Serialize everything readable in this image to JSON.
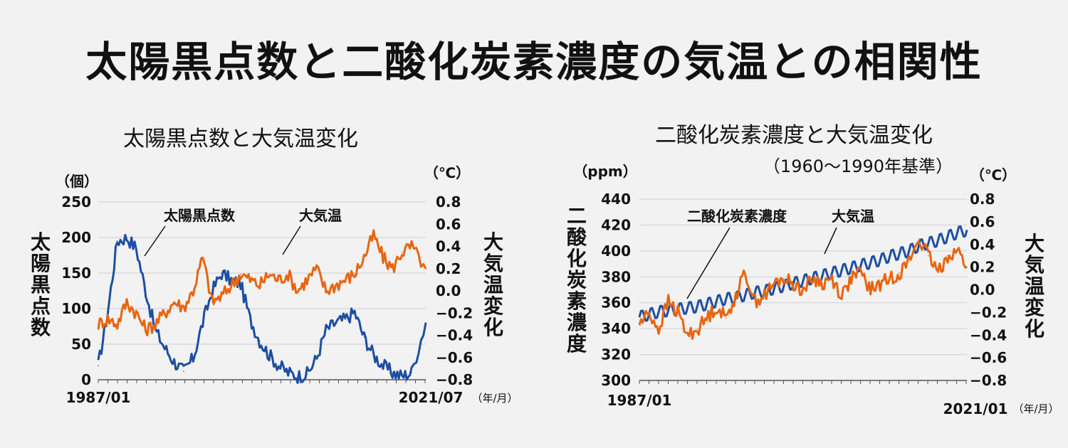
{
  "title": "太陽黒点数と二酸化炭素濃度の気温との相関性",
  "chart_data": [
    {
      "type": "line",
      "title": "太陽黒点数と大気温変化",
      "ylabel_left": "太陽黒点数",
      "ylabel_right": "大気温変化",
      "unit_left": "（個）",
      "unit_right": "（℃）",
      "x_start_label": "1987/01",
      "x_end_label": "2021/07",
      "x_unit": "（年/月）",
      "ylim_left": [
        0,
        250
      ],
      "ylim_right": [
        -0.8,
        0.8
      ],
      "yticks_left": [
        "0",
        "50",
        "100",
        "150",
        "200",
        "250"
      ],
      "yticks_right": [
        "−0.8",
        "−0.6",
        "−0.4",
        "−0.2",
        "0.0",
        "0.2",
        "0.4",
        "0.6",
        "0.8"
      ],
      "grid": true,
      "series": [
        {
          "name": "太陽黒点数",
          "axis": "left",
          "color": "#1c4ea3",
          "x": [
            1987,
            1988,
            1989,
            1990,
            1991,
            1992,
            1993,
            1994,
            1995,
            1996,
            1997,
            1998,
            1999,
            2000,
            2001,
            2002,
            2003,
            2004,
            2005,
            2006,
            2007,
            2008,
            2009,
            2010,
            2011,
            2012,
            2013,
            2014,
            2015,
            2016,
            2017,
            2018,
            2019,
            2020,
            2021.5
          ],
          "values": [
            20,
            95,
            195,
            200,
            185,
            125,
            70,
            45,
            25,
            12,
            30,
            80,
            125,
            150,
            140,
            135,
            85,
            55,
            35,
            20,
            10,
            5,
            8,
            30,
            70,
            80,
            85,
            95,
            60,
            35,
            20,
            10,
            5,
            10,
            80
          ]
        },
        {
          "name": "大気温",
          "axis": "right",
          "color": "#e8650f",
          "x": [
            1987,
            1988,
            1989,
            1990,
            1991,
            1992,
            1993,
            1994,
            1995,
            1996,
            1997,
            1998,
            1999,
            2000,
            2001,
            2002,
            2003,
            2004,
            2005,
            2006,
            2007,
            2008,
            2009,
            2010,
            2011,
            2012,
            2013,
            2014,
            2015,
            2016,
            2017,
            2018,
            2019,
            2020,
            2021.5
          ],
          "values": [
            -0.3,
            -0.25,
            -0.3,
            -0.1,
            -0.2,
            -0.35,
            -0.3,
            -0.2,
            -0.1,
            -0.15,
            0.0,
            0.3,
            -0.1,
            -0.05,
            0.05,
            0.15,
            0.1,
            0.05,
            0.15,
            0.1,
            0.15,
            0.0,
            0.1,
            0.2,
            0.0,
            0.05,
            0.1,
            0.15,
            0.3,
            0.5,
            0.3,
            0.2,
            0.35,
            0.4,
            0.2
          ]
        }
      ],
      "annotations": [
        "太陽黒点数",
        "大気温"
      ]
    },
    {
      "type": "line",
      "title": "二酸化炭素濃度と大気温変化",
      "subtitle": "（1960〜1990年基準）",
      "ylabel_left": "二酸化炭素濃度",
      "ylabel_right": "大気温変化",
      "unit_left": "（ppm）",
      "unit_right": "（℃）",
      "x_start_label": "1987/01",
      "x_end_label": "2021/01",
      "x_unit": "（年/月）",
      "ylim_left": [
        300,
        440
      ],
      "ylim_right": [
        -0.8,
        0.8
      ],
      "yticks_left": [
        "300",
        "320",
        "340",
        "360",
        "380",
        "400",
        "420",
        "440"
      ],
      "yticks_right": [
        "−0.8",
        "−0.6",
        "−0.4",
        "−0.2",
        "0.0",
        "0.2",
        "0.4",
        "0.6",
        "0.8"
      ],
      "grid": true,
      "series": [
        {
          "name": "二酸化炭素濃度",
          "axis": "left",
          "color": "#1c4ea3",
          "x": [
            1987,
            1988,
            1989,
            1990,
            1991,
            1992,
            1993,
            1994,
            1995,
            1996,
            1997,
            1998,
            1999,
            2000,
            2001,
            2002,
            2003,
            2004,
            2005,
            2006,
            2007,
            2008,
            2009,
            2010,
            2011,
            2012,
            2013,
            2014,
            2015,
            2016,
            2017,
            2018,
            2019,
            2020,
            2021
          ],
          "values": [
            349,
            351,
            353,
            354,
            355,
            356,
            357,
            359,
            361,
            363,
            364,
            366,
            368,
            369,
            371,
            373,
            375,
            377,
            379,
            381,
            383,
            385,
            387,
            389,
            391,
            393,
            396,
            398,
            400,
            404,
            406,
            408,
            411,
            414,
            416
          ]
        },
        {
          "name": "大気温",
          "axis": "right",
          "color": "#e8650f",
          "x": [
            1987,
            1988,
            1989,
            1990,
            1991,
            1992,
            1993,
            1994,
            1995,
            1996,
            1997,
            1998,
            1999,
            2000,
            2001,
            2002,
            2003,
            2004,
            2005,
            2006,
            2007,
            2008,
            2009,
            2010,
            2011,
            2012,
            2013,
            2014,
            2015,
            2016,
            2017,
            2018,
            2019,
            2020,
            2021
          ],
          "values": [
            -0.3,
            -0.2,
            -0.35,
            -0.1,
            -0.2,
            -0.4,
            -0.35,
            -0.25,
            -0.15,
            -0.25,
            -0.05,
            0.15,
            -0.1,
            -0.05,
            0.05,
            0.1,
            0.05,
            0.0,
            0.1,
            0.05,
            0.1,
            -0.05,
            0.1,
            0.15,
            0.0,
            0.05,
            0.1,
            0.15,
            0.25,
            0.45,
            0.3,
            0.15,
            0.3,
            0.35,
            0.2
          ]
        }
      ],
      "annotations": [
        "二酸化炭素濃度",
        "大気温"
      ]
    }
  ]
}
